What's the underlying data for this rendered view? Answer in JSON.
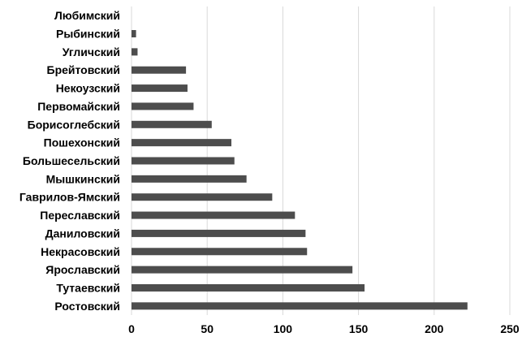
{
  "chart_data": {
    "type": "bar",
    "orientation": "horizontal",
    "title": "",
    "xlabel": "",
    "ylabel": "",
    "categories": [
      "Любимский",
      "Рыбинский",
      "Угличский",
      "Брейтовский",
      "Некоузский",
      "Первомайский",
      "Борисоглебский",
      "Пошехонский",
      "Большесельский",
      "Мышкинский",
      "Гаврилов-Ямский",
      "Переславский",
      "Даниловский",
      "Некрасовский",
      "Ярославский",
      "Тутаевский",
      "Ростовский"
    ],
    "values": [
      0,
      3,
      4,
      36,
      37,
      41,
      53,
      66,
      68,
      76,
      93,
      108,
      115,
      116,
      146,
      154,
      222
    ],
    "xlim": [
      0,
      250
    ],
    "xticks": [
      "0",
      "50",
      "100",
      "150",
      "200",
      "250"
    ],
    "grid": true,
    "legend": "none",
    "bar_color": "#4d4d4d"
  }
}
